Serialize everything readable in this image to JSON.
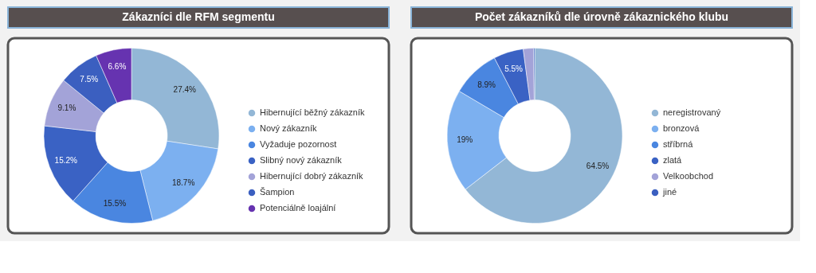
{
  "chart_data": [
    {
      "type": "donut",
      "title": "Zákazníci dle RFM segmentu",
      "categories": [
        "Hibernující běžný zákazník",
        "Nový zákazník",
        "Vyžaduje pozornost",
        "Slibný nový zákazník",
        "Hibernující dobrý zákazník",
        "Šampion",
        "Potenciálně loajální"
      ],
      "values": [
        27.4,
        18.7,
        15.5,
        15.2,
        9.1,
        7.5,
        6.6
      ],
      "colors": [
        "#93b7d6",
        "#7cb0f0",
        "#4a86e0",
        "#3a62c4",
        "#a3a3d8",
        "#3b5fc0",
        "#6633b0"
      ],
      "value_labels": [
        "27.4%",
        "18.7%",
        "15.5%",
        "15.2%",
        "9.1%",
        "7.5%",
        "6.6%"
      ],
      "legend": "right"
    },
    {
      "type": "donut",
      "title": "Počet zákazníků dle úrovně zákaznického klubu",
      "categories": [
        "neregistrovaný",
        "bronzová",
        "stříbrná",
        "zlatá",
        "Velkoobchod",
        "jiné"
      ],
      "values": [
        64.5,
        19,
        8.9,
        5.5,
        1.9,
        0.2
      ],
      "colors": [
        "#93b7d6",
        "#7cb0f0",
        "#4a86e0",
        "#3a62c4",
        "#a3a3d8",
        "#3b5fc0"
      ],
      "value_labels": [
        "64.5%",
        "19%",
        "8.9%",
        "5.5%",
        null,
        null
      ],
      "legend": "right"
    }
  ]
}
